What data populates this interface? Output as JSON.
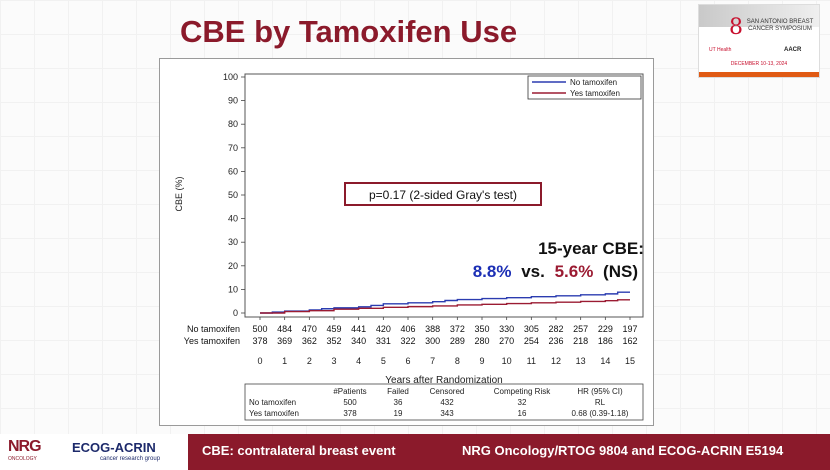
{
  "slide": {
    "title": "CBE by Tamoxifen Use"
  },
  "logo": {
    "mark": "8",
    "text": "SAN ANTONIO BREAST CANCER SYMPOSIUM",
    "sub": "UT Health",
    "sub2": "AACR",
    "dates": "DECEMBER 10-13, 2024"
  },
  "chart_data": {
    "type": "line",
    "ylabel": "CBE (%)",
    "xlabel": "Years after Randomization",
    "ylim": [
      0,
      100
    ],
    "xlim": [
      0,
      15
    ],
    "yticks": [
      "0",
      "10",
      "20",
      "30",
      "40",
      "50",
      "60",
      "70",
      "80",
      "90",
      "100"
    ],
    "xticks": [
      "0",
      "1",
      "2",
      "3",
      "4",
      "5",
      "6",
      "7",
      "8",
      "9",
      "10",
      "11",
      "12",
      "13",
      "14",
      "15"
    ],
    "legend_position": "top-right",
    "series": [
      {
        "name": "No tamoxifen",
        "color": "#2b3cb0",
        "x": [
          0,
          0.5,
          1,
          2,
          2.5,
          3,
          4,
          4.5,
          5,
          6,
          7,
          7.5,
          8,
          9,
          10,
          11,
          12,
          13,
          14,
          14.5,
          15
        ],
        "y": [
          0,
          0.4,
          0.8,
          1.3,
          1.8,
          2.2,
          2.6,
          3.2,
          3.9,
          4.3,
          4.8,
          5.3,
          5.7,
          6.1,
          6.5,
          6.9,
          7.3,
          7.7,
          8.1,
          8.8,
          8.8
        ]
      },
      {
        "name": "Yes tamoxifen",
        "color": "#9b1b32",
        "x": [
          0,
          1,
          2,
          3,
          4,
          5,
          6,
          7,
          8,
          9,
          10,
          11,
          12,
          13,
          14,
          14.5,
          15
        ],
        "y": [
          0,
          0.6,
          1.0,
          1.6,
          2.0,
          2.4,
          2.7,
          3.0,
          3.4,
          3.7,
          4.0,
          4.3,
          4.6,
          4.9,
          5.2,
          5.6,
          5.6
        ]
      }
    ],
    "annotation_test": "p=0.17 (2-sided Gray's test)",
    "summary_title": "15-year CBE:",
    "summary_no": "8.8%",
    "summary_vs": "vs.",
    "summary_yes": "5.6%",
    "summary_ns": "(NS)",
    "risk_table": {
      "rows": [
        {
          "label": "No tamoxifen",
          "values": [
            "500",
            "484",
            "470",
            "459",
            "441",
            "420",
            "406",
            "388",
            "372",
            "350",
            "330",
            "305",
            "282",
            "257",
            "229",
            "197"
          ]
        },
        {
          "label": "Yes tamoxifen",
          "values": [
            "378",
            "369",
            "362",
            "352",
            "340",
            "331",
            "322",
            "300",
            "289",
            "280",
            "270",
            "254",
            "236",
            "218",
            "186",
            "162"
          ]
        }
      ]
    },
    "summary_table": {
      "headers": [
        "#Patients",
        "Failed",
        "Censored",
        "Competing Risk",
        "HR (95% CI)"
      ],
      "rows": [
        {
          "label": "No tamoxifen",
          "cells": [
            "500",
            "36",
            "432",
            "32",
            "RL"
          ]
        },
        {
          "label": "Yes tamoxifen",
          "cells": [
            "378",
            "19",
            "343",
            "16",
            "0.68 (0.39-1.18)"
          ]
        }
      ]
    }
  },
  "footer": {
    "nrg": "NRG",
    "nrg_sub": "ONCOLOGY",
    "ecog": "ECOG-ACRIN",
    "ecog_sub": "cancer research group",
    "note": "CBE: contralateral breast event",
    "trial": "NRG Oncology/RTOG 9804 and ECOG-ACRIN E5194"
  }
}
